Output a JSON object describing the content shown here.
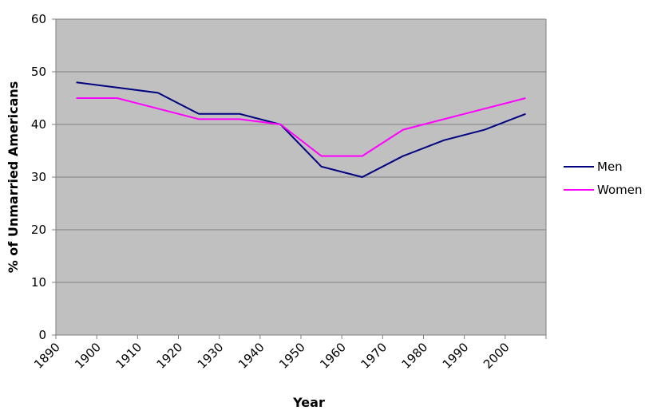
{
  "chart_data": {
    "type": "line",
    "title": "",
    "xlabel": "Year",
    "ylabel": "% of Unmarried Americans",
    "x": [
      1895,
      1905,
      1915,
      1925,
      1935,
      1945,
      1955,
      1965,
      1975,
      1985,
      1995,
      2005
    ],
    "xlim": [
      1890,
      2010
    ],
    "xticks": [
      "1890",
      "1900",
      "1910",
      "1920",
      "1930",
      "1940",
      "1950",
      "1960",
      "1970",
      "1980",
      "1990",
      "2000"
    ],
    "ylim": [
      0,
      60
    ],
    "yticks": [
      "0",
      "10",
      "20",
      "30",
      "40",
      "50",
      "60"
    ],
    "grid": true,
    "legend_position": "right",
    "series": [
      {
        "name": "Men",
        "color": "#000080",
        "values": [
          48,
          47,
          46,
          42,
          42,
          40,
          32,
          30,
          34,
          37,
          39,
          42
        ]
      },
      {
        "name": "Women",
        "color": "#FF00FF",
        "values": [
          45,
          45,
          43,
          41,
          41,
          40,
          34,
          34,
          39,
          41,
          43,
          45
        ]
      }
    ],
    "plot_background": "#C0C0C0"
  }
}
